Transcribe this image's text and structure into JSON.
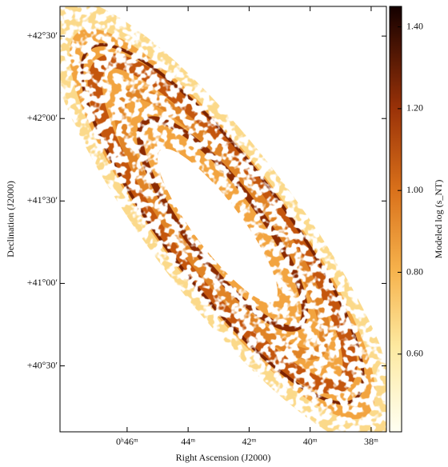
{
  "chart_data": {
    "type": "image",
    "xlabel": "Right Ascension (J2000)",
    "ylabel": "Declination (J2000)",
    "xlim": [
      48.2,
      37.5
    ],
    "xticks": [
      {
        "value": 46,
        "label": "0ʰ46ᵐ"
      },
      {
        "value": 44,
        "label": "44ᵐ"
      },
      {
        "value": 42,
        "label": "42ᵐ"
      },
      {
        "value": 40,
        "label": "40ᵐ"
      },
      {
        "value": 38,
        "label": "38ᵐ"
      }
    ],
    "ylim": [
      40.1,
      42.68
    ],
    "yticks": [
      {
        "value": 40.5,
        "label": "+40°30′"
      },
      {
        "value": 41.0,
        "label": "+41°00′"
      },
      {
        "value": 41.5,
        "label": "+41°30′"
      },
      {
        "value": 42.0,
        "label": "+42°00′"
      },
      {
        "value": 42.5,
        "label": "+42°30′"
      }
    ],
    "colorbar": {
      "label": "Modeled log (s_NT)",
      "lim": [
        0.41,
        1.45
      ],
      "ticks": [
        {
          "value": 0.6,
          "label": "0.60"
        },
        {
          "value": 0.8,
          "label": "0.80"
        },
        {
          "value": 1.0,
          "label": "1.00"
        },
        {
          "value": 1.2,
          "label": "1.20"
        },
        {
          "value": 1.4,
          "label": "1.40"
        }
      ]
    }
  }
}
